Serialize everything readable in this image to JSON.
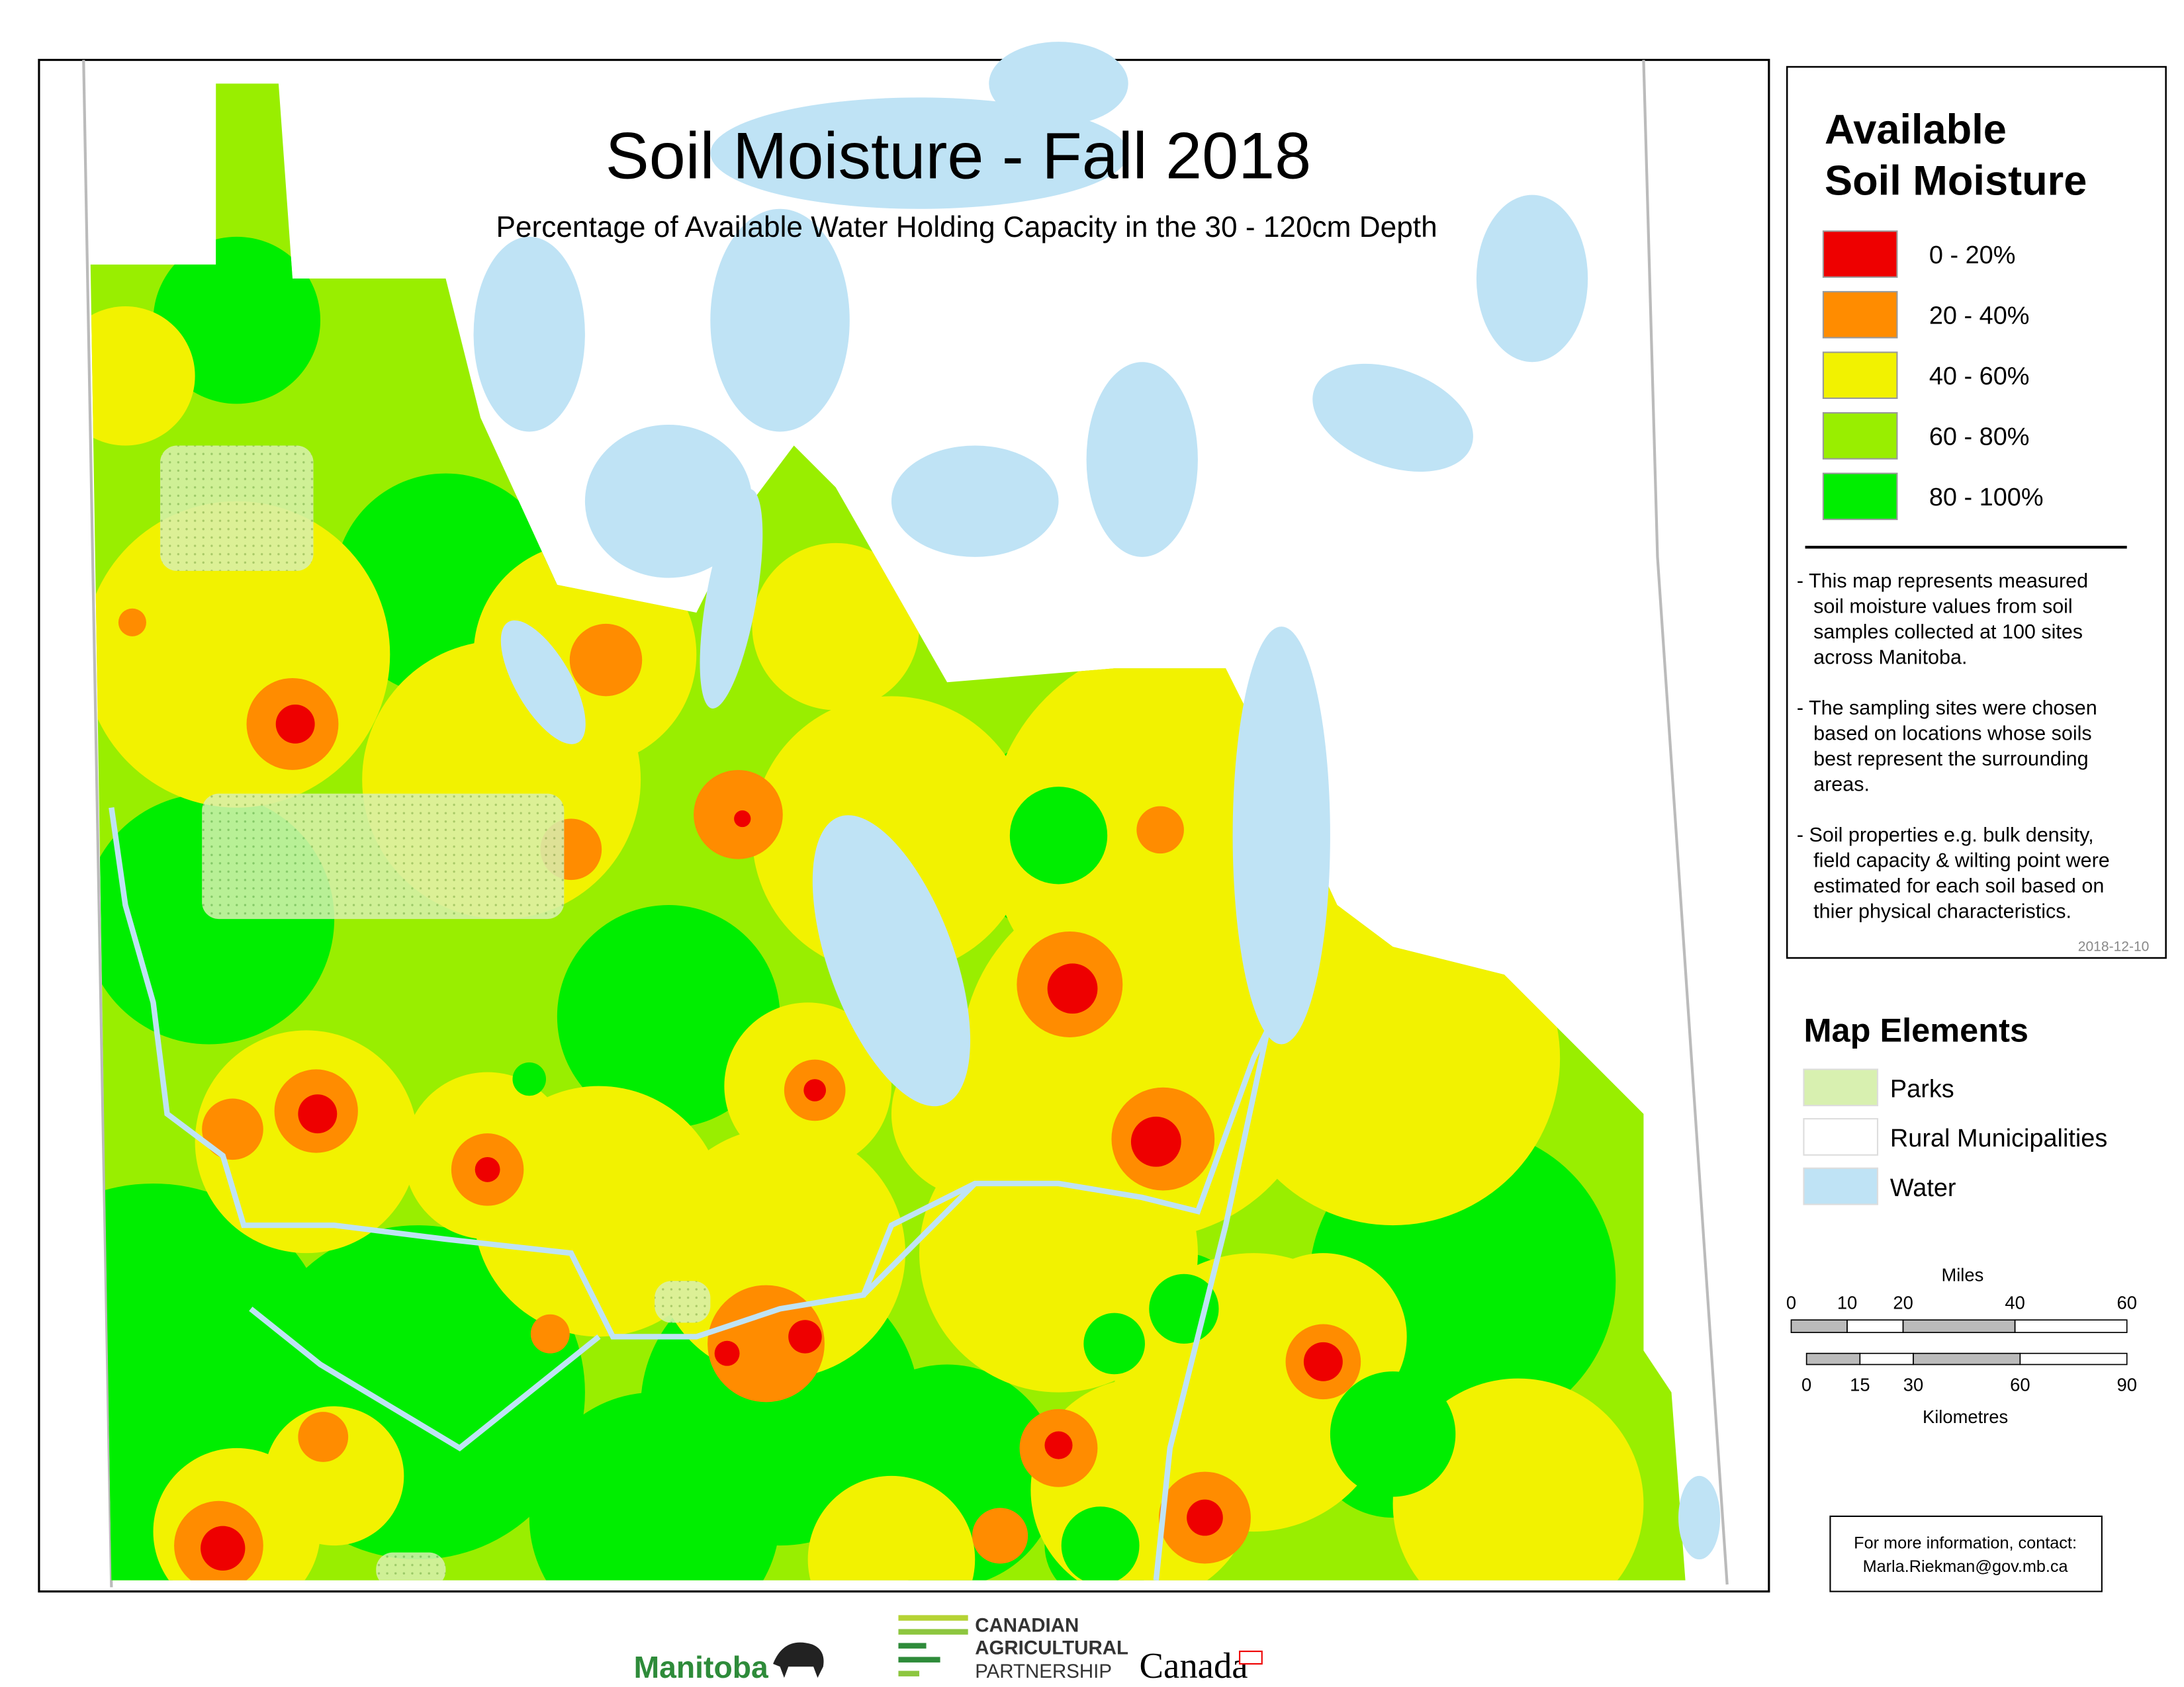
{
  "header": {
    "title": "Soil Moisture - Fall 2018",
    "subtitle": "Percentage of Available Water Holding Capacity in the 30 - 120cm Depth"
  },
  "legend": {
    "title": [
      "Available",
      "Soil Moisture"
    ],
    "items": [
      {
        "label": "0 - 20%",
        "color": "#ee0000"
      },
      {
        "label": "20 - 40%",
        "color": "#ff8c00"
      },
      {
        "label": "40 - 60%",
        "color": "#f2f200"
      },
      {
        "label": "60 - 80%",
        "color": "#99ee00"
      },
      {
        "label": "80 - 100%",
        "color": "#00ee00"
      }
    ],
    "notes": [
      [
        "- This map represents measured",
        "soil moisture values from soil",
        "samples collected at 100 sites",
        "across Manitoba."
      ],
      [
        "- The sampling sites were chosen",
        "based on locations whose soils",
        "best represent the surrounding",
        "areas."
      ],
      [
        "- Soil properties e.g. bulk density,",
        "field capacity & wilting point were",
        "estimated for each soil based on",
        "thier physical characteristics."
      ]
    ],
    "date": "2018-12-10"
  },
  "map_elements": {
    "title": "Map Elements",
    "items": [
      {
        "label": "Parks",
        "color": "#d8f0b0"
      },
      {
        "label": "Rural Municipalities",
        "color": "#ffffff"
      },
      {
        "label": "Water",
        "color": "#bfe3f5"
      }
    ]
  },
  "scale": {
    "miles_label": "Miles",
    "miles_ticks": [
      0,
      10,
      20,
      40,
      60
    ],
    "km_label": "Kilometres",
    "km_ticks": [
      0,
      15,
      30,
      60,
      90
    ]
  },
  "contact": [
    "For more information, contact:",
    "Marla.Riekman@gov.mb.ca"
  ],
  "logos": {
    "manitoba": "Manitoba",
    "cap": [
      "CANADIAN",
      "AGRICULTURAL",
      "PARTNERSHIP"
    ],
    "canada": "Canada"
  }
}
